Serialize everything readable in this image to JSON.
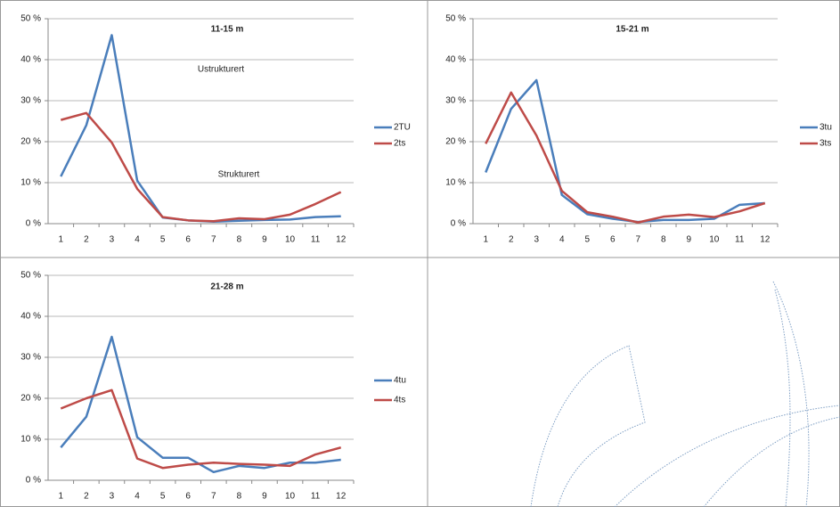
{
  "chart_data": [
    {
      "type": "line",
      "title": "11-15 m",
      "annotations": [
        {
          "text": "Ustrukturert",
          "color": "#1f4e79"
        },
        {
          "text": "Strukturert",
          "color": "#e8201f"
        }
      ],
      "categories": [
        "1",
        "2",
        "3",
        "4",
        "5",
        "6",
        "7",
        "8",
        "9",
        "10",
        "11",
        "12"
      ],
      "series": [
        {
          "name": "2TU",
          "color": "#4a7ebb",
          "values": [
            11.5,
            24,
            46,
            10.5,
            1.5,
            0.8,
            0.5,
            0.7,
            0.9,
            1,
            1.6,
            1.8
          ]
        },
        {
          "name": "2ts",
          "color": "#be4b48",
          "values": [
            25.3,
            27,
            19.8,
            8.5,
            1.6,
            0.8,
            0.6,
            1.3,
            1.1,
            2.2,
            4.8,
            7.7
          ]
        }
      ],
      "ylim": [
        0,
        50
      ],
      "yticks": [
        {
          "value": 0,
          "label": "0 %"
        },
        {
          "value": 10,
          "label": "10 %"
        },
        {
          "value": 20,
          "label": "20 %"
        },
        {
          "value": 30,
          "label": "30 %"
        },
        {
          "value": 40,
          "label": "40 %"
        },
        {
          "value": 50,
          "label": "50 %"
        }
      ],
      "grid": true
    },
    {
      "type": "line",
      "title": "15-21 m",
      "categories": [
        "1",
        "2",
        "3",
        "4",
        "5",
        "6",
        "7",
        "8",
        "9",
        "10",
        "11",
        "12"
      ],
      "series": [
        {
          "name": "3tu",
          "color": "#4a7ebb",
          "values": [
            12.5,
            28,
            35,
            7,
            2.3,
            1.2,
            0.4,
            0.9,
            0.9,
            1.2,
            4.6,
            5
          ]
        },
        {
          "name": "3ts",
          "color": "#be4b48",
          "values": [
            19.5,
            32,
            21.5,
            8,
            2.8,
            1.7,
            0.3,
            1.7,
            2.2,
            1.6,
            3,
            5
          ]
        }
      ],
      "ylim": [
        0,
        50
      ],
      "yticks": [
        {
          "value": 0,
          "label": "0 %"
        },
        {
          "value": 10,
          "label": "10 %"
        },
        {
          "value": 20,
          "label": "20 %"
        },
        {
          "value": 30,
          "label": "30 %"
        },
        {
          "value": 40,
          "label": "40 %"
        },
        {
          "value": 50,
          "label": "50 %"
        }
      ],
      "grid": true
    },
    {
      "type": "line",
      "title": "21-28 m",
      "categories": [
        "1",
        "2",
        "3",
        "4",
        "5",
        "6",
        "7",
        "8",
        "9",
        "10",
        "11",
        "12"
      ],
      "series": [
        {
          "name": "4tu",
          "color": "#4a7ebb",
          "values": [
            8,
            15.5,
            35,
            10.5,
            5.5,
            5.5,
            2,
            3.5,
            3,
            4.3,
            4.3,
            5
          ]
        },
        {
          "name": "4ts",
          "color": "#be4b48",
          "values": [
            17.5,
            20,
            22,
            5.3,
            3,
            3.8,
            4.3,
            4,
            3.8,
            3.5,
            6.3,
            8
          ]
        }
      ],
      "ylim": [
        0,
        50
      ],
      "yticks": [
        {
          "value": 0,
          "label": "0 %"
        },
        {
          "value": 10,
          "label": "10 %"
        },
        {
          "value": 20,
          "label": "20 %"
        },
        {
          "value": 30,
          "label": "30 %"
        },
        {
          "value": 40,
          "label": "40 %"
        },
        {
          "value": 50,
          "label": "50 %"
        }
      ],
      "grid": true
    }
  ]
}
